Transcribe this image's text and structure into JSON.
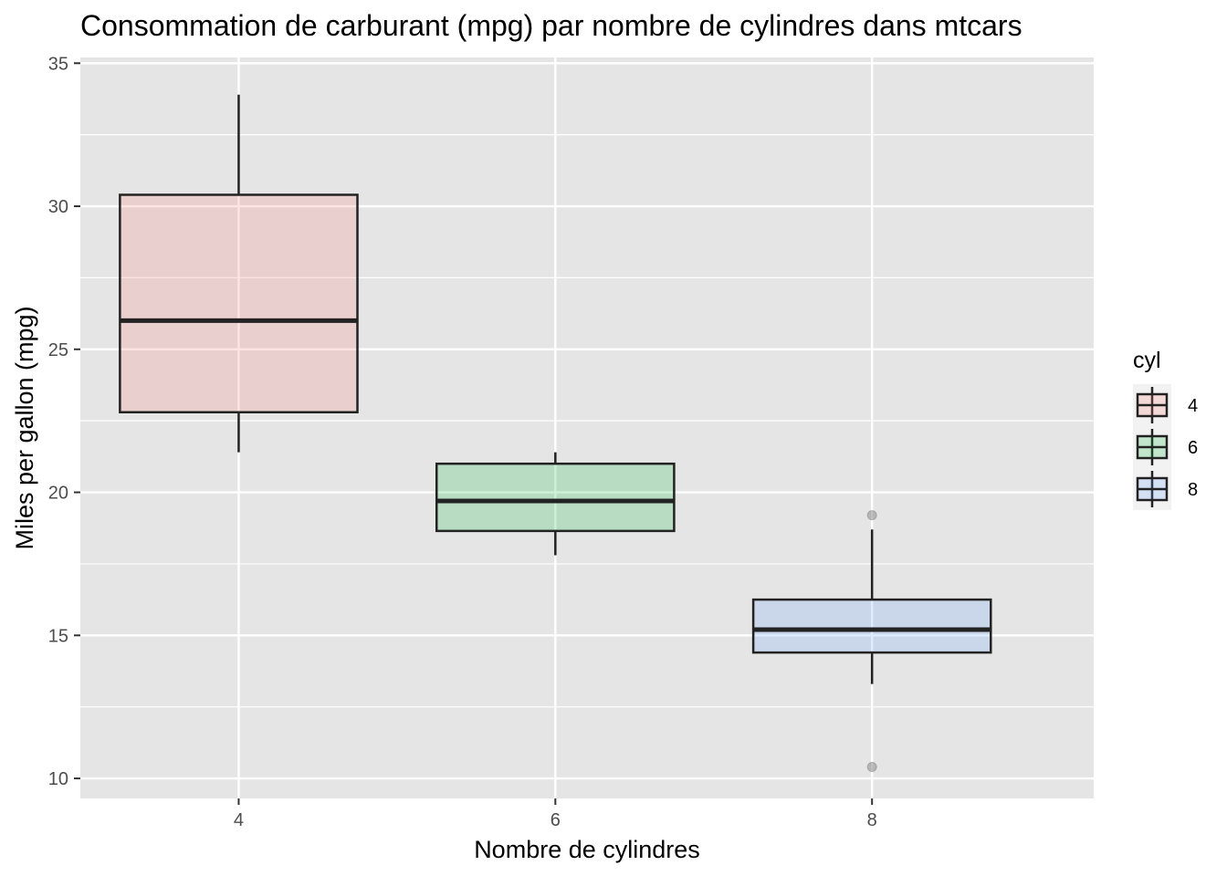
{
  "chart_data": {
    "type": "boxplot",
    "title": "Consommation de carburant (mpg) par nombre de cylindres dans mtcars",
    "xlabel": "Nombre de cylindres",
    "ylabel": "Miles per gallon (mpg)",
    "xlim": [
      3,
      9.4
    ],
    "ylim": [
      9.3,
      35.2
    ],
    "x_ticks": [
      4,
      6,
      8
    ],
    "y_ticks": [
      10,
      15,
      20,
      25,
      30,
      35
    ],
    "y_minor_ticks": [
      12.5,
      17.5,
      22.5,
      27.5,
      32.5
    ],
    "grid": true,
    "legend": {
      "title": "cyl",
      "position": "right",
      "entries": [
        {
          "label": "4",
          "color": "#f8766d"
        },
        {
          "label": "6",
          "color": "#00ba38"
        },
        {
          "label": "8",
          "color": "#619cff"
        }
      ]
    },
    "series": [
      {
        "x": 4,
        "color": "#f8766d",
        "min": 21.4,
        "q1": 22.8,
        "median": 26.0,
        "q3": 30.4,
        "max": 33.9,
        "outliers": []
      },
      {
        "x": 6,
        "color": "#00ba38",
        "min": 17.8,
        "q1": 18.65,
        "median": 19.7,
        "q3": 21.0,
        "max": 21.4,
        "outliers": []
      },
      {
        "x": 8,
        "color": "#619cff",
        "min": 13.3,
        "q1": 14.4,
        "median": 15.2,
        "q3": 16.25,
        "max": 18.7,
        "outliers": [
          19.2,
          10.4
        ]
      }
    ],
    "colors": {
      "panel_background": "#e5e5e5",
      "grid": "#ffffff",
      "box_stroke": "#222222",
      "outlier": "#8c8c8c"
    }
  }
}
